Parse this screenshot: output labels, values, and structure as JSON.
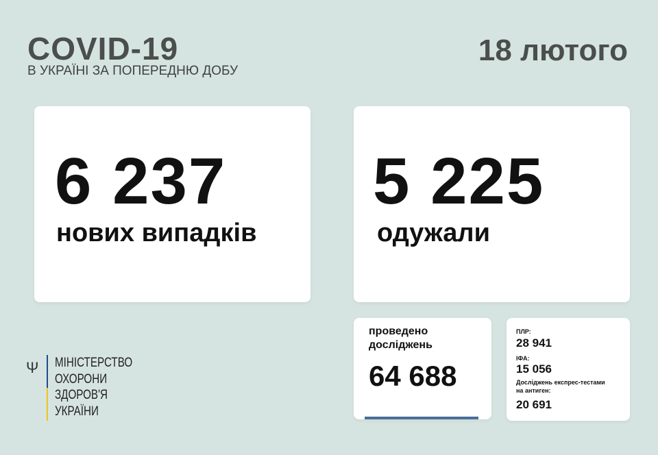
{
  "header": {
    "title": "COVID-19",
    "subtitle": "В УКРАЇНІ ЗА ПОПЕРЕДНЮ ДОБУ",
    "date": "18 лютого"
  },
  "new_cases": {
    "value": "6 237",
    "label": "нових випадків"
  },
  "recovered": {
    "value": "5 225",
    "label": "одужали"
  },
  "tests": {
    "label_line1": "проведено",
    "label_line2": "досліджень",
    "value": "64 688"
  },
  "breakdown": {
    "pcr_label": "ПЛР:",
    "pcr_value": "28 941",
    "ifa_label": "ІФА:",
    "ifa_value": "15 056",
    "express_label_line1": "Досліджень експрес-тестами",
    "express_label_line2": "на антиген:",
    "express_value": "20 691"
  },
  "ministry": {
    "lines": [
      "МІНІСТЕРСТВО",
      "ОХОРОНИ",
      "ЗДОРОВ'Я",
      "УКРАЇНИ"
    ],
    "icon": "trident-icon"
  },
  "colors": {
    "background": "#d6e4e1",
    "header_text": "#4a4f4c",
    "accent_bar": "#4a6e9a",
    "flag_blue": "#1f4a8c",
    "flag_yellow": "#f0c419"
  }
}
